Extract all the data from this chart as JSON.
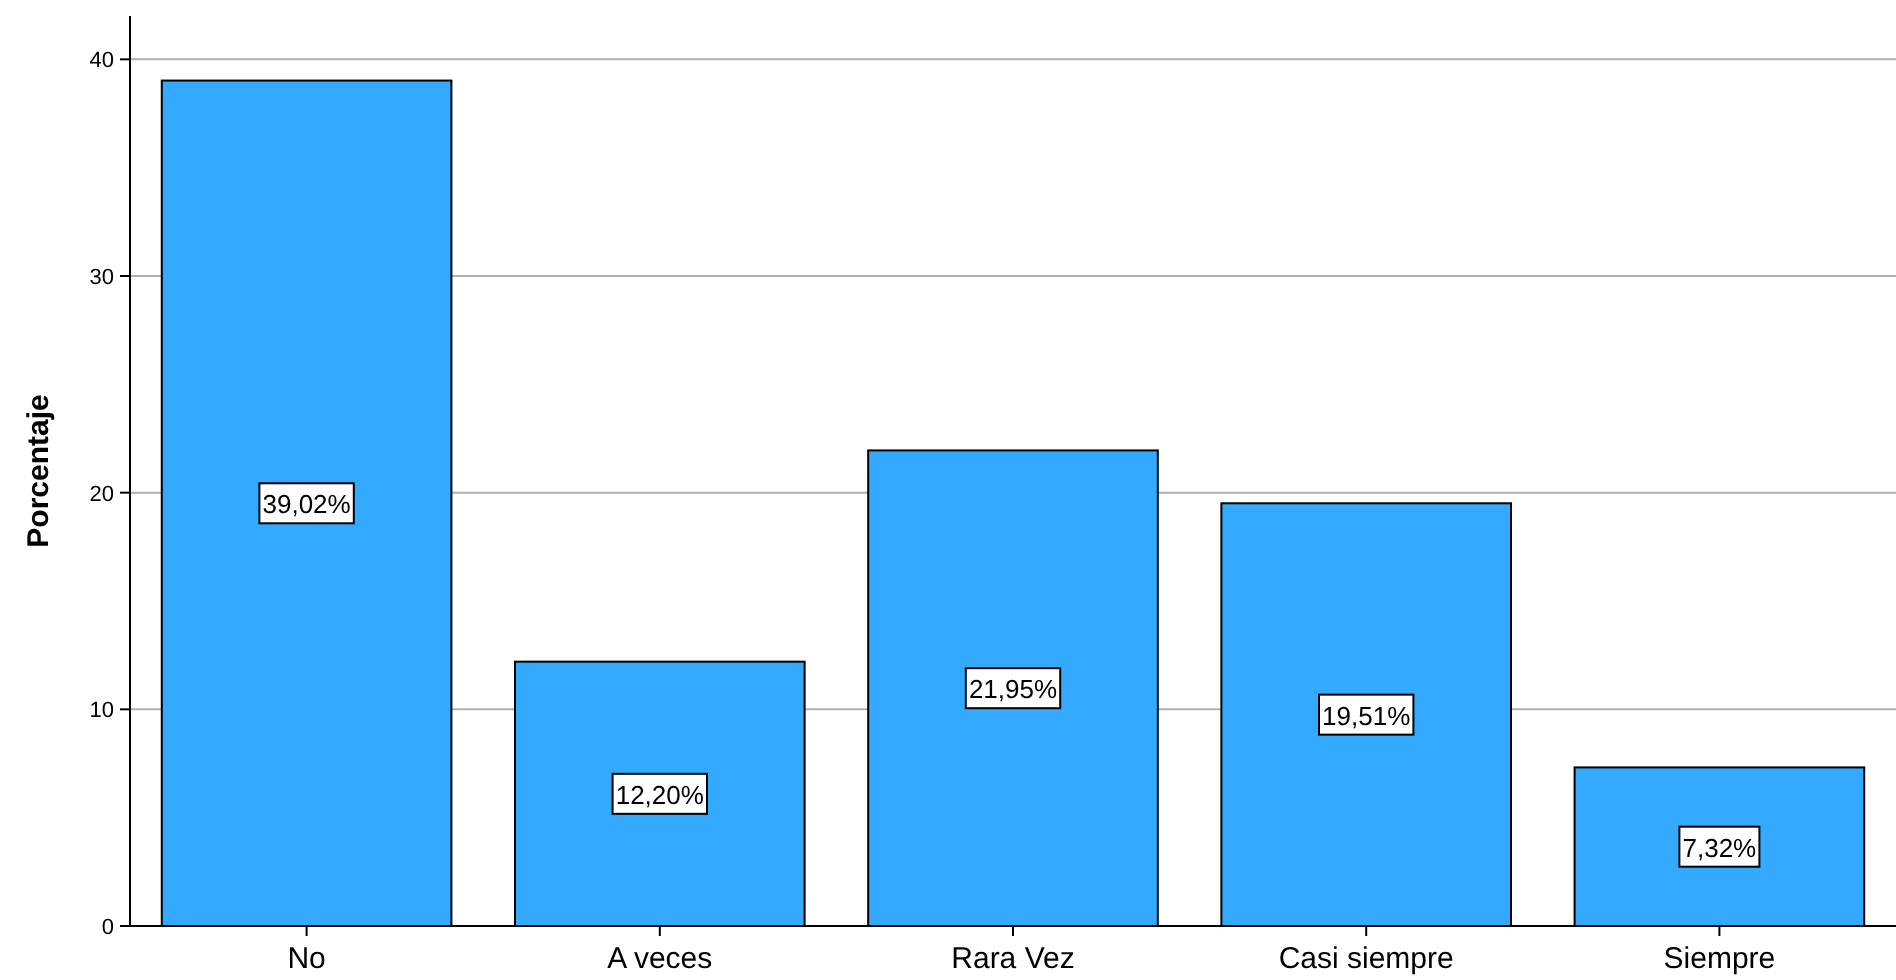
{
  "chart_data": {
    "type": "bar",
    "ylabel": "Porcentaje",
    "categories": [
      "No",
      "A veces",
      "Rara Vez",
      "Casi siempre",
      "Siempre"
    ],
    "values": [
      39.02,
      12.2,
      21.95,
      19.51,
      7.32
    ],
    "value_labels": [
      "39,02%",
      "12,20%",
      "21,95%",
      "19,51%",
      "7,32%"
    ],
    "color": "#33aaff",
    "ylim": [
      0,
      42
    ],
    "yticks": [
      0,
      10,
      20,
      30,
      40
    ],
    "grid": "y"
  }
}
